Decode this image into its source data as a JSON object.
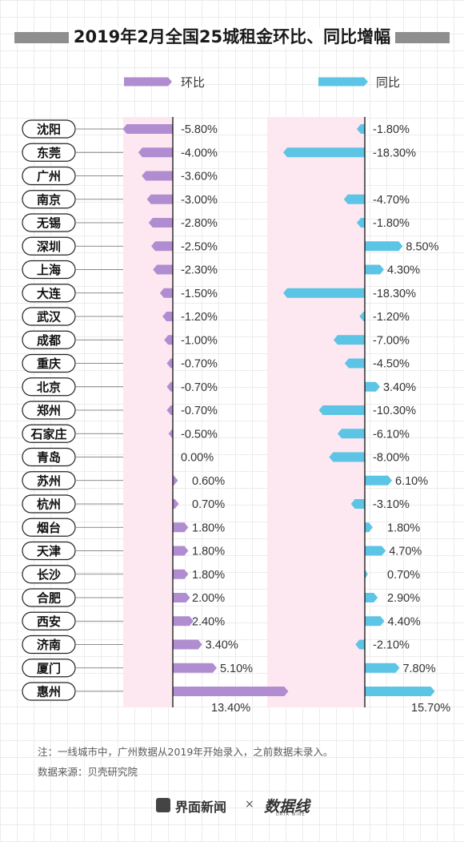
{
  "title": "2019年2月全国25城租金环比、同比增幅",
  "legend": {
    "mom": "环比",
    "yoy": "同比"
  },
  "colors": {
    "mom": "#b08dd0",
    "yoy": "#5cc4e4",
    "band": "#fde8f1",
    "axis": "#111111"
  },
  "chart_data": {
    "type": "bar",
    "orientation": "horizontal",
    "categories": [
      "沈阳",
      "东莞",
      "广州",
      "南京",
      "无锡",
      "深圳",
      "上海",
      "大连",
      "武汉",
      "成都",
      "重庆",
      "北京",
      "郑州",
      "石家庄",
      "青岛",
      "苏州",
      "杭州",
      "烟台",
      "天津",
      "长沙",
      "合肥",
      "西安",
      "济南",
      "厦门",
      "惠州"
    ],
    "series": [
      {
        "name": "环比",
        "values": [
          -5.8,
          -4.0,
          -3.6,
          -3.0,
          -2.8,
          -2.5,
          -2.3,
          -1.5,
          -1.2,
          -1.0,
          -0.7,
          -0.7,
          -0.7,
          -0.5,
          0.0,
          0.6,
          0.7,
          1.8,
          1.8,
          1.8,
          2.0,
          2.4,
          3.4,
          5.1,
          13.4
        ],
        "labels": [
          "-5.80%",
          "-4.00%",
          "-3.60%",
          "-3.00%",
          "-2.80%",
          "-2.50%",
          "-2.30%",
          "-1.50%",
          "-1.20%",
          "-1.00%",
          "-0.70%",
          "-0.70%",
          "-0.70%",
          "-0.50%",
          "0.00%",
          "0.60%",
          "0.70%",
          "1.80%",
          "1.80%",
          "1.80%",
          "2.00%",
          "2.40%",
          "3.40%",
          "5.10%",
          "13.40%"
        ]
      },
      {
        "name": "同比",
        "values": [
          -1.8,
          -18.3,
          null,
          -4.7,
          -1.8,
          8.5,
          4.3,
          -18.3,
          -1.2,
          -7.0,
          -4.5,
          3.4,
          -10.3,
          -6.1,
          -8.0,
          6.1,
          -3.1,
          1.8,
          4.7,
          0.7,
          2.9,
          4.4,
          -2.1,
          7.8,
          15.7
        ],
        "labels": [
          "-1.80%",
          "-18.30%",
          "",
          "-4.70%",
          "-1.80%",
          "8.50%",
          "4.30%",
          "-18.30%",
          "-1.20%",
          "-7.00%",
          "-4.50%",
          "3.40%",
          "-10.30%",
          "-6.10%",
          "-8.00%",
          "6.10%",
          "-3.10%",
          "1.80%",
          "4.70%",
          "0.70%",
          "2.90%",
          "4.40%",
          "-2.10%",
          "7.80%",
          "15.70%"
        ]
      }
    ]
  },
  "notes": {
    "note1": "注：一线城市中，广州数据从2019年开始录入，之前数据未录入。",
    "note2": "数据来源：贝壳研究院"
  },
  "footer": {
    "brand1": "界面新闻",
    "sep": "×",
    "brand2": "数据线",
    "brand2_sub": "DATA WIRE"
  }
}
